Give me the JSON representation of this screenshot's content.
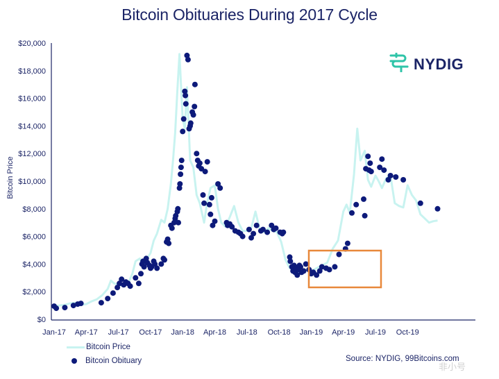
{
  "title": "Bitcoin Obituaries During 2017 Cycle",
  "logo": {
    "text": "NYDIG",
    "icon": "nydig-logo-icon",
    "icon_color": "#2fc4a8"
  },
  "source": "Source: NYDIG, 99Bitcoins.com",
  "watermark": "非小号",
  "colors": {
    "price_line": "#c8f3f0",
    "obituary_dot": "#0d1a7a",
    "highlight_box": "#e8883a",
    "text": "#1b2466"
  },
  "chart_data": {
    "type": "line",
    "title": "Bitcoin Obituaries During 2017 Cycle",
    "xlabel": "",
    "ylabel": "Bitcoin Price",
    "ylim": [
      0,
      20000
    ],
    "y_ticks": [
      "$0",
      "$2,000",
      "$4,000",
      "$6,000",
      "$8,000",
      "$10,000",
      "$12,000",
      "$14,000",
      "$16,000",
      "$18,000",
      "$20,000"
    ],
    "x_ticks": [
      "Jan-17",
      "Apr-17",
      "Jul-17",
      "Oct-17",
      "Jan-18",
      "Apr-18",
      "Jul-18",
      "Oct-18",
      "Jan-19",
      "Apr-19",
      "Jul-19",
      "Oct-19"
    ],
    "grid": false,
    "legend_position": "bottom-left",
    "legend": [
      "Bitcoin Price",
      "Bitcoin Obituary"
    ],
    "annotations": [
      {
        "type": "box",
        "color": "#e8883a",
        "x_range": [
          "Nov-18",
          "Apr-19"
        ],
        "y_range": [
          2200,
          5000
        ],
        "label": ""
      }
    ],
    "series": [
      {
        "name": "Bitcoin Price",
        "type": "line",
        "x_month": [
          0,
          0.5,
          1,
          1.5,
          2,
          2.5,
          3,
          3.5,
          4,
          4.5,
          5,
          5.3,
          5.6,
          6,
          6.5,
          7,
          7.3,
          7.6,
          8,
          8.3,
          8.6,
          9,
          9.3,
          9.6,
          10,
          10.3,
          10.6,
          10.9,
          11.1,
          11.3,
          11.5,
          11.7,
          12,
          12.2,
          12.4,
          12.7,
          13,
          13.3,
          13.6,
          14,
          14.3,
          14.6,
          15,
          15.3,
          15.6,
          16,
          16.4,
          16.8,
          17.2,
          17.6,
          18,
          18.4,
          18.8,
          19.2,
          19.6,
          20,
          20.4,
          20.8,
          21.2,
          21.6,
          22,
          22.4,
          22.8,
          23.2,
          23.6,
          24,
          24.5,
          25,
          25.5,
          26,
          26.5,
          27,
          27.3,
          27.6,
          28,
          28.3,
          28.6,
          29,
          29.3,
          29.6,
          30,
          30.3,
          30.6,
          31,
          31.4,
          31.8,
          32.2,
          32.6,
          33,
          33.4,
          33.8,
          34.2,
          34.6,
          35,
          35.4,
          35.8
        ],
        "values": [
          950,
          1000,
          1050,
          1150,
          1200,
          1050,
          1100,
          1300,
          1450,
          1750,
          2200,
          2800,
          2600,
          2500,
          2400,
          2750,
          3300,
          4200,
          4400,
          3800,
          4300,
          4800,
          5700,
          6200,
          7200,
          7000,
          8000,
          9800,
          11500,
          13500,
          16500,
          19200,
          14500,
          13800,
          16800,
          11500,
          11000,
          9000,
          8400,
          7000,
          8500,
          9500,
          9700,
          8000,
          7000,
          6700,
          7400,
          8200,
          7000,
          6400,
          6400,
          6600,
          7800,
          6500,
          6300,
          6600,
          6400,
          6300,
          5600,
          4300,
          3700,
          3600,
          3400,
          3500,
          3600,
          3500,
          3700,
          3900,
          4100,
          5100,
          5700,
          7800,
          8300,
          7700,
          10500,
          13800,
          11500,
          12200,
          10100,
          9600,
          10400,
          10000,
          9500,
          10200,
          10400,
          8400,
          8200,
          8100,
          9700,
          9000,
          8600,
          7600,
          7300,
          7000,
          7100,
          7150
        ]
      },
      {
        "name": "Bitcoin Obituary",
        "type": "scatter",
        "x_month": [
          0,
          0.2,
          1,
          1.8,
          2.2,
          2.5,
          4.4,
          5.0,
          5.5,
          5.9,
          6.1,
          6.3,
          6.5,
          6.7,
          6.9,
          7.1,
          7.6,
          7.9,
          8.1,
          8.2,
          8.3,
          8.4,
          8.6,
          8.7,
          8.9,
          9.0,
          9.1,
          9.3,
          9.4,
          9.6,
          10.0,
          10.2,
          10.3,
          10.5,
          10.6,
          10.7,
          10.9,
          11.0,
          11.2,
          11.3,
          11.35,
          11.5,
          11.55,
          11.6,
          11.7,
          11.75,
          11.8,
          11.85,
          11.9,
          12.0,
          12.1,
          12.2,
          12.25,
          12.3,
          12.4,
          12.5,
          12.6,
          12.7,
          12.75,
          12.9,
          13.0,
          13.1,
          13.15,
          13.3,
          13.4,
          13.5,
          13.6,
          13.75,
          13.9,
          14.0,
          14.1,
          14.3,
          14.5,
          14.6,
          14.7,
          14.8,
          15.0,
          15.3,
          15.5,
          16.1,
          16.2,
          16.4,
          16.6,
          16.9,
          17.2,
          17.4,
          17.6,
          18.2,
          18.4,
          18.6,
          18.9,
          19.3,
          19.5,
          19.9,
          20.3,
          20.5,
          20.7,
          21.1,
          21.3,
          21.4,
          22.0,
          22.05,
          22.2,
          22.3,
          22.4,
          22.5,
          22.6,
          22.7,
          22.8,
          22.9,
          23.0,
          23.1,
          23.3,
          23.5,
          23.8,
          24.0,
          24.2,
          24.5,
          24.8,
          25.0,
          25.4,
          25.7,
          26.2,
          26.6,
          27.2,
          27.4,
          27.8,
          28.2,
          28.9,
          29.0,
          29.1,
          29.3,
          29.4,
          29.5,
          29.6,
          30.4,
          30.6,
          30.8,
          31.2,
          31.4,
          31.9,
          32.6,
          34.2,
          35.8
        ],
        "values": [
          950,
          800,
          850,
          1000,
          1100,
          1150,
          1200,
          1500,
          1900,
          2300,
          2600,
          2900,
          2500,
          2700,
          2600,
          2400,
          3000,
          2600,
          3300,
          4000,
          4200,
          3800,
          4400,
          4100,
          3900,
          3700,
          3800,
          4200,
          4000,
          3700,
          4000,
          4400,
          4300,
          5600,
          5800,
          5500,
          6800,
          6600,
          7000,
          7300,
          7500,
          7800,
          8000,
          7000,
          9500,
          9800,
          10500,
          11000,
          11500,
          13600,
          14500,
          16500,
          16200,
          15600,
          19100,
          18800,
          13800,
          14000,
          14200,
          15000,
          14800,
          15400,
          17000,
          12000,
          11500,
          11100,
          11300,
          10900,
          9000,
          8400,
          10700,
          11400,
          8300,
          7600,
          8800,
          6800,
          7100,
          9800,
          9500,
          7000,
          6800,
          6900,
          6700,
          6400,
          6300,
          6200,
          6000,
          6500,
          5900,
          6200,
          6800,
          6400,
          6500,
          6300,
          6800,
          6500,
          6600,
          6300,
          6200,
          6300,
          4500,
          4200,
          3800,
          3500,
          3900,
          3400,
          3700,
          3200,
          3600,
          3900,
          3800,
          3400,
          3500,
          4000,
          3600,
          3300,
          3400,
          3200,
          3500,
          3800,
          3700,
          3600,
          3800,
          4700,
          5100,
          5500,
          7700,
          8300,
          8700,
          7500,
          10900,
          11800,
          10800,
          11300,
          10700,
          11000,
          11600,
          10800,
          10100,
          10400,
          10300,
          10100,
          8400,
          8000,
          7100,
          6900
        ]
      }
    ]
  }
}
